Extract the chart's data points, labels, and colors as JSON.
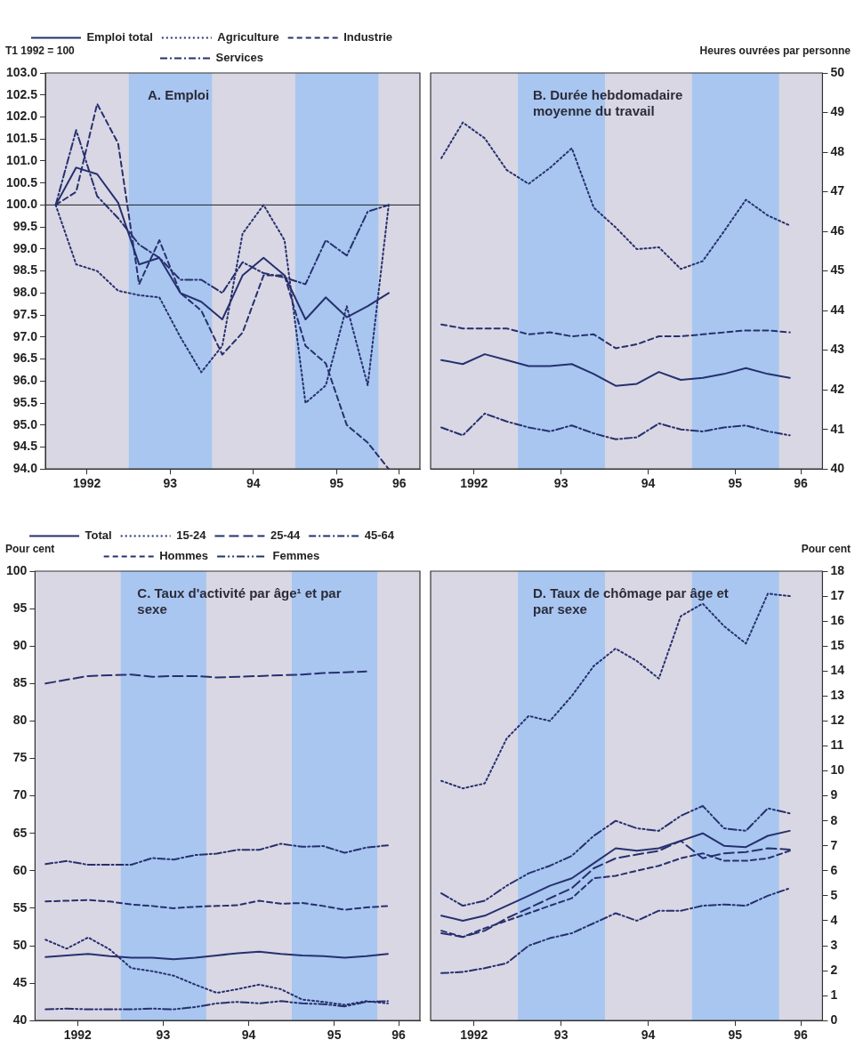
{
  "chart_data": [
    {
      "type": "line",
      "title": "A. Emploi",
      "ylabel": "T1 1992 = 100",
      "legend": "top",
      "grid": false,
      "marker": "none",
      "x": [
        "1992-02-15",
        "1992-05-15",
        "1992-08-15",
        "1992-11-15",
        "1993-02-15",
        "1993-05-15",
        "1993-08-15",
        "1993-11-15",
        "1994-02-15",
        "1994-05-15",
        "1994-08-15",
        "1994-11-15",
        "1995-02-15",
        "1995-05-15",
        "1995-08-15",
        "1995-11-15",
        "1996-02-15"
      ],
      "xlim": [
        "1992-01-01",
        "1996-07-01"
      ],
      "xticks": [
        {
          "value": "1992-07-01",
          "label": "1992"
        },
        {
          "value": "1993-07-01",
          "label": "93"
        },
        {
          "value": "1994-07-01",
          "label": "94"
        },
        {
          "value": "1995-07-01",
          "label": "95"
        },
        {
          "value": "1996-04-01",
          "label": "96"
        }
      ],
      "ylim": [
        94,
        103
      ],
      "yticks": [
        {
          "value": 94,
          "label": "94.0"
        },
        {
          "value": 94.5,
          "label": "94.5"
        },
        {
          "value": 95,
          "label": "95.0"
        },
        {
          "value": 95.5,
          "label": "95.5"
        },
        {
          "value": 96,
          "label": "96.0"
        },
        {
          "value": 96.5,
          "label": "96.5"
        },
        {
          "value": 97,
          "label": "97.0"
        },
        {
          "value": 97.5,
          "label": "97.5"
        },
        {
          "value": 98,
          "label": "98.0"
        },
        {
          "value": 98.5,
          "label": "98.5"
        },
        {
          "value": 99,
          "label": "99.0"
        },
        {
          "value": 99.5,
          "label": "99.5"
        },
        {
          "value": 100,
          "label": "100.0"
        },
        {
          "value": 100.5,
          "label": "100.5"
        },
        {
          "value": 101,
          "label": "101.0"
        },
        {
          "value": 101.5,
          "label": "101.5"
        },
        {
          "value": 102,
          "label": "102.0"
        },
        {
          "value": 102.5,
          "label": "102.5"
        },
        {
          "value": 103,
          "label": "103.0"
        }
      ],
      "bands": [
        {
          "axis": "x",
          "from": "1993-01-01",
          "to": "1994-01-01",
          "color": "#a8c6f0"
        },
        {
          "axis": "x",
          "from": "1995-01-01",
          "to": "1996-01-01",
          "color": "#a8c6f0"
        }
      ],
      "ref_lines": [
        {
          "axis": "y",
          "value": 100,
          "color": "#222222"
        }
      ],
      "series": [
        {
          "name": "Emploi total",
          "color": "#26306e",
          "line_style": "solid",
          "values": [
            100,
            100.85,
            100.7,
            100.05,
            98.65,
            98.8,
            98.0,
            97.8,
            97.4,
            98.4,
            98.8,
            98.4,
            97.4,
            97.9,
            97.45,
            97.7,
            98.0
          ]
        },
        {
          "name": "Agriculture",
          "color": "#26306e",
          "line_style": "dotted",
          "values": [
            100,
            98.65,
            98.5,
            98.05,
            97.95,
            97.9,
            97.0,
            96.2,
            96.8,
            99.35,
            100.0,
            99.2,
            95.5,
            95.9,
            97.7,
            95.9,
            100.0
          ]
        },
        {
          "name": "Industrie",
          "color": "#26306e",
          "line_style": "dashed",
          "values": [
            100,
            100.3,
            102.3,
            101.4,
            98.2,
            99.2,
            98.0,
            97.6,
            96.6,
            97.1,
            98.4,
            98.4,
            96.8,
            96.4,
            95.0,
            94.6,
            94.0
          ]
        },
        {
          "name": "Services",
          "color": "#26306e",
          "line_style": "dashdot",
          "values": [
            100,
            101.7,
            100.2,
            99.7,
            99.1,
            98.8,
            98.3,
            98.3,
            98.0,
            98.7,
            98.45,
            98.35,
            98.2,
            99.2,
            98.85,
            99.85,
            100.0
          ]
        }
      ]
    },
    {
      "type": "line",
      "title": "B. Durée hebdomadaire moyenne du travail",
      "y2label": "Heures ouvrées par personne",
      "grid": false,
      "marker": "none",
      "x": [
        "1992-02-15",
        "1992-05-15",
        "1992-08-15",
        "1992-11-15",
        "1993-02-15",
        "1993-05-15",
        "1993-08-15",
        "1993-11-15",
        "1994-02-15",
        "1994-05-15",
        "1994-08-15",
        "1994-11-15",
        "1995-02-15",
        "1995-05-15",
        "1995-08-15",
        "1995-11-15",
        "1996-02-15"
      ],
      "xlim": [
        "1992-01-01",
        "1996-07-01"
      ],
      "xticks": [
        {
          "value": "1992-07-01",
          "label": "1992"
        },
        {
          "value": "1993-07-01",
          "label": "93"
        },
        {
          "value": "1994-07-01",
          "label": "94"
        },
        {
          "value": "1995-07-01",
          "label": "95"
        },
        {
          "value": "1996-04-01",
          "label": "96"
        }
      ],
      "y2lim": [
        40,
        50
      ],
      "y2ticks": [
        40,
        41,
        42,
        43,
        44,
        45,
        46,
        47,
        48,
        49,
        50
      ],
      "bands": [
        {
          "axis": "x",
          "from": "1993-01-01",
          "to": "1994-01-01",
          "color": "#a8c6f0"
        },
        {
          "axis": "x",
          "from": "1995-01-01",
          "to": "1996-01-01",
          "color": "#a8c6f0"
        }
      ],
      "series": [
        {
          "color": "#26306e",
          "line_style": "dotted",
          "axis": "y2",
          "values": [
            47.85,
            48.75,
            48.35,
            47.55,
            47.2,
            47.6,
            48.1,
            46.6,
            46.1,
            45.55,
            45.6,
            45.05,
            45.25,
            46.0,
            46.8,
            46.4,
            46.15
          ]
        },
        {
          "color": "#26306e",
          "line_style": "dashed",
          "axis": "y2",
          "values": [
            43.65,
            43.55,
            43.55,
            43.55,
            43.4,
            43.45,
            43.35,
            43.4,
            43.05,
            43.15,
            43.35,
            43.35,
            43.4,
            43.45,
            43.5,
            43.5,
            43.45
          ]
        },
        {
          "color": "#26306e",
          "line_style": "solid",
          "axis": "y2",
          "values": [
            42.75,
            42.65,
            42.9,
            42.75,
            42.6,
            42.6,
            42.65,
            42.4,
            42.1,
            42.15,
            42.45,
            42.25,
            42.3,
            42.4,
            42.55,
            42.4,
            42.3
          ]
        },
        {
          "color": "#26306e",
          "line_style": "dashdot",
          "axis": "y2",
          "values": [
            41.05,
            40.85,
            41.4,
            41.2,
            41.05,
            40.95,
            41.1,
            40.9,
            40.75,
            40.8,
            41.15,
            41.0,
            40.95,
            41.05,
            41.1,
            40.95,
            40.85
          ]
        }
      ]
    },
    {
      "type": "line",
      "title": "C. Taux d'activité par âge¹ et par sexe",
      "ylabel": "Pour cent",
      "legend": "top",
      "grid": false,
      "marker": "none",
      "x": [
        "1992-02-15",
        "1992-05-15",
        "1992-08-15",
        "1992-11-15",
        "1993-02-15",
        "1993-05-15",
        "1993-08-15",
        "1993-11-15",
        "1994-02-15",
        "1994-05-15",
        "1994-08-15",
        "1994-11-15",
        "1995-02-15",
        "1995-05-15",
        "1995-08-15",
        "1995-11-15",
        "1996-02-15"
      ],
      "xlim": [
        "1992-01-01",
        "1996-07-01"
      ],
      "xticks": [
        {
          "value": "1992-07-01",
          "label": "1992"
        },
        {
          "value": "1993-07-01",
          "label": "93"
        },
        {
          "value": "1994-07-01",
          "label": "94"
        },
        {
          "value": "1995-07-01",
          "label": "95"
        },
        {
          "value": "1996-04-01",
          "label": "96"
        }
      ],
      "ylim": [
        40,
        100
      ],
      "yticks": [
        40,
        45,
        50,
        55,
        60,
        65,
        70,
        75,
        80,
        85,
        90,
        95,
        100
      ],
      "bands": [
        {
          "axis": "x",
          "from": "1993-01-01",
          "to": "1994-01-01",
          "color": "#a8c6f0"
        },
        {
          "axis": "x",
          "from": "1995-01-01",
          "to": "1996-01-01",
          "color": "#a8c6f0"
        }
      ],
      "series": [
        {
          "name": "Total",
          "color": "#26306e",
          "line_style": "solid",
          "values": [
            48.5,
            48.7,
            48.9,
            48.6,
            48.4,
            48.4,
            48.2,
            48.4,
            48.7,
            49.0,
            49.2,
            48.9,
            48.7,
            48.6,
            48.4,
            48.6,
            48.9
          ]
        },
        {
          "name": "15-24",
          "color": "#26306e",
          "line_style": "dotted",
          "values": [
            50.8,
            49.6,
            51.1,
            49.5,
            47.0,
            46.6,
            46.0,
            44.8,
            43.7,
            44.2,
            44.8,
            44.2,
            42.8,
            42.5,
            42.1,
            42.6,
            42.3
          ]
        },
        {
          "name": "25-44",
          "color": "#26306e",
          "line_style": "longdash",
          "values": [
            85.0,
            85.5,
            86.0,
            86.1,
            86.2,
            85.9,
            86.0,
            86.0,
            85.8,
            85.9,
            86.0,
            86.1,
            86.2,
            86.4,
            86.5,
            86.6,
            null
          ]
        },
        {
          "name": "45-64",
          "color": "#26306e",
          "line_style": "dashdot",
          "values": [
            60.9,
            61.3,
            60.8,
            60.8,
            60.8,
            61.7,
            61.5,
            62.1,
            62.3,
            62.8,
            62.8,
            63.6,
            63.2,
            63.3,
            62.4,
            63.1,
            63.4
          ]
        },
        {
          "name": "Hommes",
          "color": "#26306e",
          "line_style": "dashed",
          "values": [
            55.9,
            56.0,
            56.1,
            55.9,
            55.5,
            55.3,
            55.0,
            55.2,
            55.3,
            55.4,
            56.0,
            55.6,
            55.7,
            55.3,
            54.8,
            55.1,
            55.3
          ]
        },
        {
          "name": "Femmes",
          "color": "#26306e",
          "line_style": "dashdotdot",
          "values": [
            41.5,
            41.6,
            41.5,
            41.5,
            41.5,
            41.6,
            41.5,
            41.8,
            42.3,
            42.5,
            42.3,
            42.6,
            42.3,
            42.2,
            41.9,
            42.5,
            42.6
          ]
        }
      ]
    },
    {
      "type": "line",
      "title": "D. Taux de chômage par âge et par sexe",
      "y2label": "Pour cent",
      "grid": false,
      "marker": "none",
      "x": [
        "1992-02-15",
        "1992-05-15",
        "1992-08-15",
        "1992-11-15",
        "1993-02-15",
        "1993-05-15",
        "1993-08-15",
        "1993-11-15",
        "1994-02-15",
        "1994-05-15",
        "1994-08-15",
        "1994-11-15",
        "1995-02-15",
        "1995-05-15",
        "1995-08-15",
        "1995-11-15",
        "1996-02-15"
      ],
      "xlim": [
        "1992-01-01",
        "1996-07-01"
      ],
      "xticks": [
        {
          "value": "1992-07-01",
          "label": "1992"
        },
        {
          "value": "1993-07-01",
          "label": "93"
        },
        {
          "value": "1994-07-01",
          "label": "94"
        },
        {
          "value": "1995-07-01",
          "label": "95"
        },
        {
          "value": "1996-04-01",
          "label": "96"
        }
      ],
      "y2lim": [
        0,
        18
      ],
      "y2ticks": [
        0,
        1,
        2,
        3,
        4,
        5,
        6,
        7,
        8,
        9,
        10,
        11,
        12,
        13,
        14,
        15,
        16,
        17,
        18
      ],
      "bands": [
        {
          "axis": "x",
          "from": "1993-01-01",
          "to": "1994-01-01",
          "color": "#a8c6f0"
        },
        {
          "axis": "x",
          "from": "1995-01-01",
          "to": "1996-01-01",
          "color": "#a8c6f0"
        }
      ],
      "series": [
        {
          "color": "#26306e",
          "line_style": "solid",
          "axis": "y2",
          "values": [
            4.2,
            4.0,
            4.2,
            4.6,
            5.0,
            5.4,
            5.7,
            6.3,
            6.9,
            6.8,
            6.9,
            7.2,
            7.5,
            7.0,
            6.95,
            7.4,
            7.6
          ]
        },
        {
          "color": "#26306e",
          "line_style": "dotted",
          "axis": "y2",
          "values": [
            9.6,
            9.3,
            9.5,
            11.3,
            12.2,
            12.0,
            13.0,
            14.2,
            14.9,
            14.4,
            13.7,
            16.2,
            16.7,
            15.8,
            15.1,
            17.1,
            17.0
          ]
        },
        {
          "color": "#26306e",
          "line_style": "longdash",
          "axis": "y2",
          "values": [
            3.5,
            3.35,
            3.6,
            4.1,
            4.5,
            4.9,
            5.3,
            6.1,
            6.5,
            6.65,
            6.8,
            7.2,
            6.5,
            6.7,
            6.75,
            6.9,
            6.85
          ]
        },
        {
          "color": "#26306e",
          "line_style": "dashdot",
          "axis": "y2",
          "values": [
            1.9,
            1.95,
            2.1,
            2.3,
            3.0,
            3.3,
            3.5,
            3.9,
            4.3,
            4.0,
            4.4,
            4.4,
            4.6,
            4.65,
            4.6,
            5.0,
            5.3
          ]
        },
        {
          "color": "#26306e",
          "line_style": "dashed",
          "axis": "y2",
          "values": [
            3.6,
            3.35,
            3.7,
            4.0,
            4.3,
            4.6,
            4.9,
            5.7,
            5.8,
            6.0,
            6.2,
            6.5,
            6.7,
            6.4,
            6.4,
            6.5,
            6.8
          ]
        },
        {
          "color": "#26306e",
          "line_style": "dashdotdot",
          "axis": "y2",
          "values": [
            5.1,
            4.6,
            4.8,
            5.4,
            5.9,
            6.2,
            6.6,
            7.4,
            8.0,
            7.7,
            7.6,
            8.2,
            8.6,
            7.7,
            7.6,
            8.5,
            8.3
          ]
        }
      ]
    }
  ]
}
